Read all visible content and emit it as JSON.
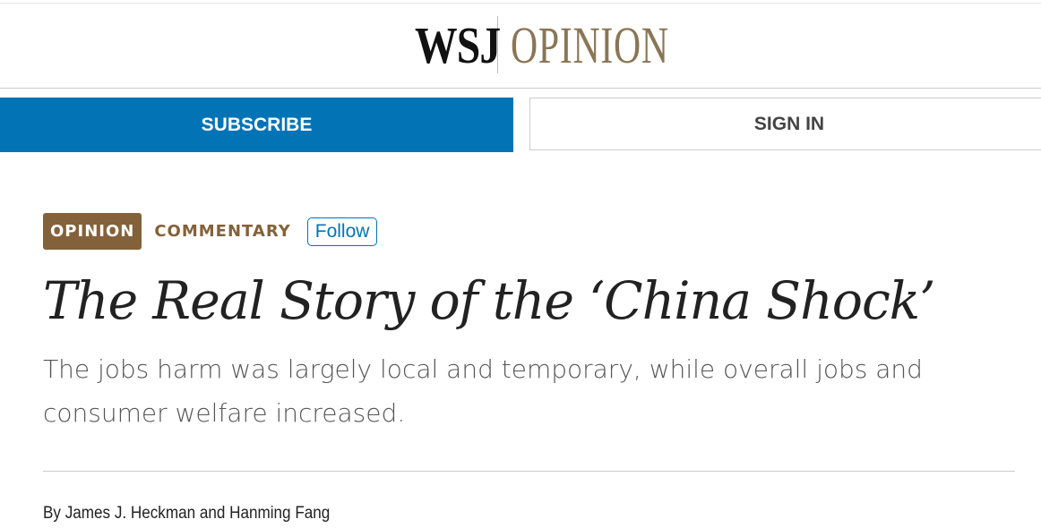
{
  "header": {
    "logo_wsj": "WSJ",
    "logo_section": "OPINION",
    "subscribe_label": "SUBSCRIBE",
    "signin_label": "SIGN IN"
  },
  "article": {
    "section_tag": "OPINION",
    "category": "COMMENTARY",
    "follow_label": "Follow",
    "title": "The Real Story of the ‘China Shock’",
    "dek": "The jobs harm was largely local and temporary, while overall jobs and consumer welfare increased.",
    "byline": "By James J. Heckman and Hanming Fang"
  },
  "colors": {
    "accent_blue": "#0274b6",
    "opinion_brown": "#83613a",
    "logo_gold": "#8a7656"
  }
}
